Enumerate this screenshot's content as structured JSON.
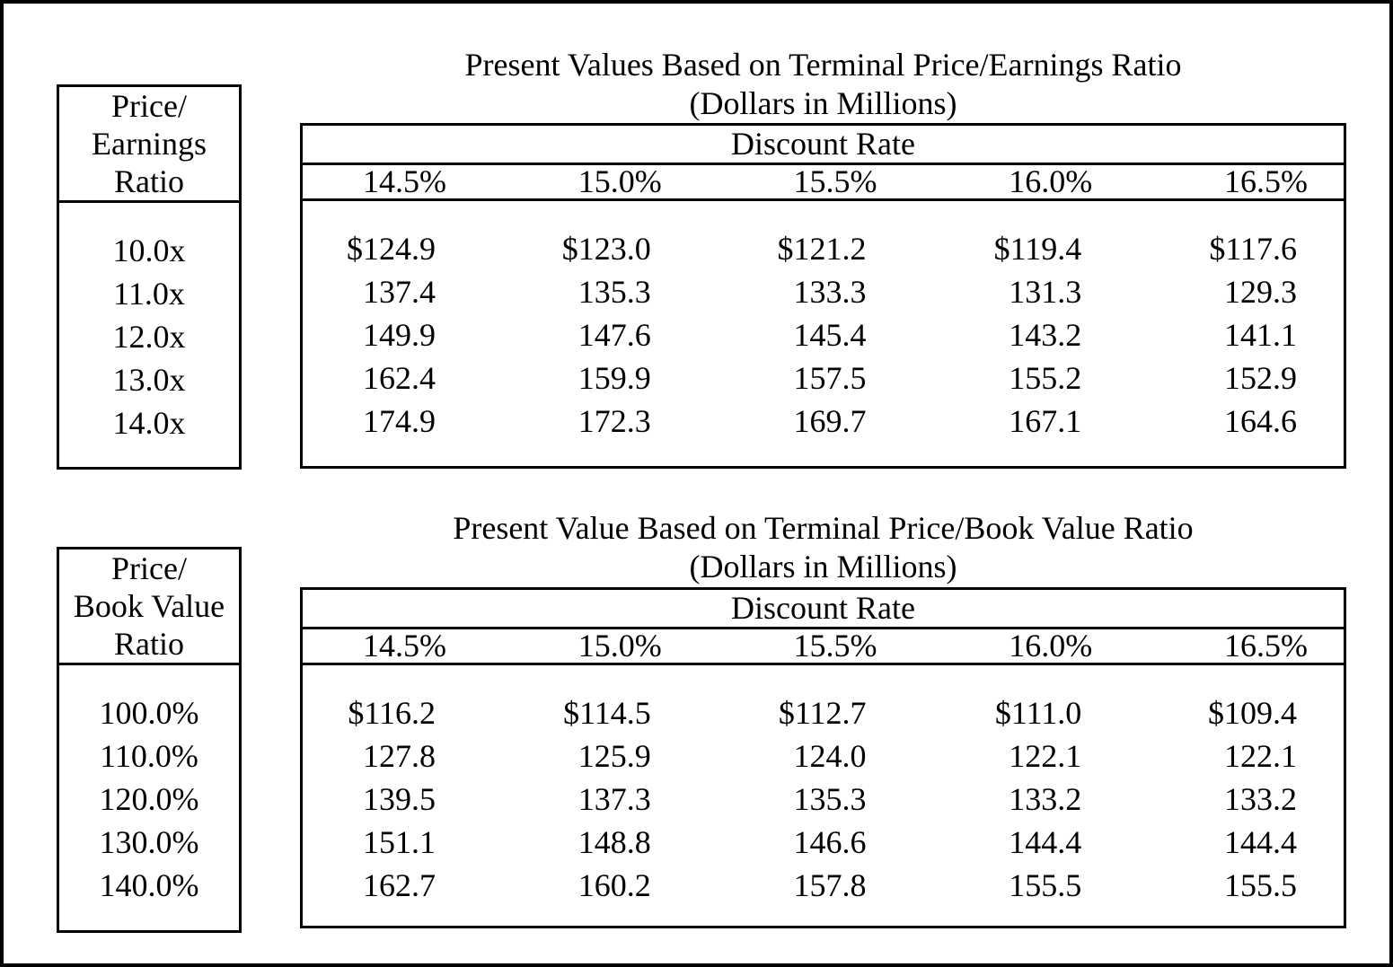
{
  "colors": {
    "ink": "#000000",
    "paper": "#ffffff"
  },
  "tables": [
    {
      "title": "Present Values Based on Terminal Price/Earnings Ratio",
      "subtitle": "(Dollars in Millions)",
      "row_header_lines": [
        "Price/",
        "Earnings",
        "Ratio"
      ],
      "col_group_header": "Discount Rate",
      "col_headers": [
        "14.5%",
        "15.0%",
        "15.5%",
        "16.0%",
        "16.5%"
      ],
      "row_labels": [
        "10.0x",
        "11.0x",
        "12.0x",
        "13.0x",
        "14.0x"
      ],
      "rows": [
        [
          "$124.9",
          "$123.0",
          "$121.2",
          "$119.4",
          "$117.6"
        ],
        [
          "137.4",
          "135.3",
          "133.3",
          "131.3",
          "129.3"
        ],
        [
          "149.9",
          "147.6",
          "145.4",
          "143.2",
          "141.1"
        ],
        [
          "162.4",
          "159.9",
          "157.5",
          "155.2",
          "152.9"
        ],
        [
          "174.9",
          "172.3",
          "169.7",
          "167.1",
          "164.6"
        ]
      ]
    },
    {
      "title": "Present Value Based on Terminal Price/Book Value Ratio",
      "subtitle": "(Dollars in Millions)",
      "row_header_lines": [
        "Price/",
        "Book Value",
        "Ratio"
      ],
      "col_group_header": "Discount Rate",
      "col_headers": [
        "14.5%",
        "15.0%",
        "15.5%",
        "16.0%",
        "16.5%"
      ],
      "row_labels": [
        "100.0%",
        "110.0%",
        "120.0%",
        "130.0%",
        "140.0%"
      ],
      "rows": [
        [
          "$116.2",
          "$114.5",
          "$112.7",
          "$111.0",
          "$109.4"
        ],
        [
          "127.8",
          "125.9",
          "124.0",
          "122.1",
          "122.1"
        ],
        [
          "139.5",
          "137.3",
          "135.3",
          "133.2",
          "133.2"
        ],
        [
          "151.1",
          "148.8",
          "146.6",
          "144.4",
          "144.4"
        ],
        [
          "162.7",
          "160.2",
          "157.8",
          "155.5",
          "155.5"
        ]
      ]
    }
  ]
}
